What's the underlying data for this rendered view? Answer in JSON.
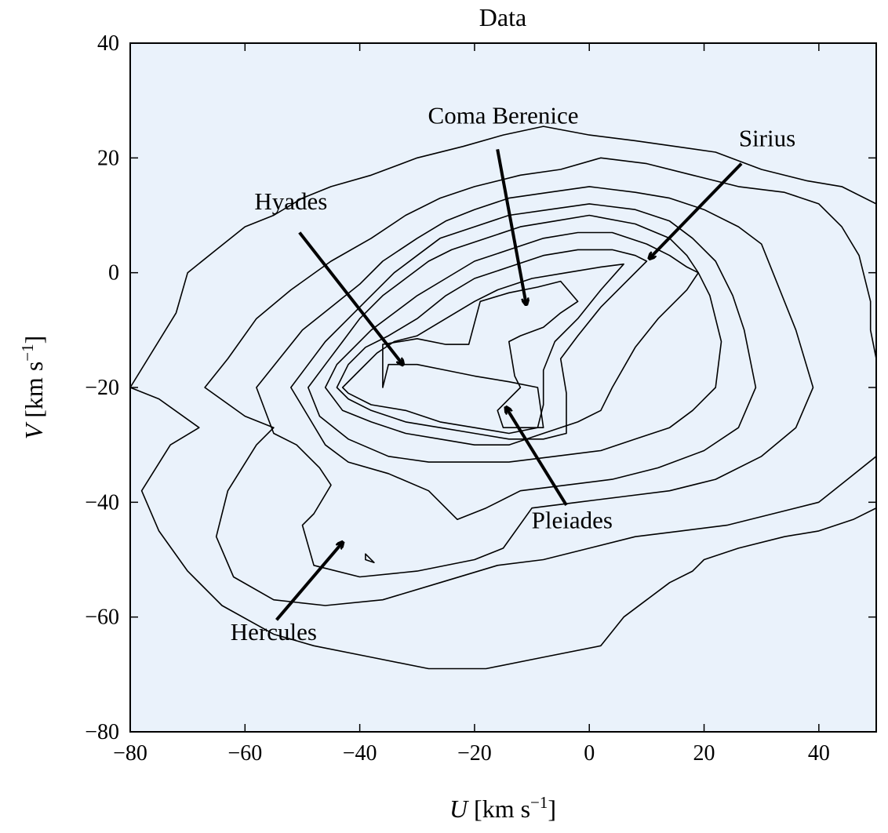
{
  "chart_data": {
    "type": "contour",
    "title": "Data",
    "xlabel": {
      "var": "U",
      "unit": " [km s",
      "sup": "−1",
      "close": "]"
    },
    "ylabel": {
      "var": "V",
      "unit": " [km s",
      "sup": "−1",
      "close": "]"
    },
    "xlim": [
      -80,
      50
    ],
    "ylim": [
      -80,
      40
    ],
    "xticks": [
      -80,
      -60,
      -40,
      -20,
      0,
      20,
      40
    ],
    "yticks": [
      -80,
      -60,
      -40,
      -20,
      0,
      20,
      40
    ],
    "xtick_labels": [
      "−80",
      "−60",
      "−40",
      "−20",
      "0",
      "20",
      "40"
    ],
    "ytick_labels": [
      "−80",
      "−60",
      "−40",
      "−20",
      "0",
      "20",
      "40"
    ],
    "background_color": "#eaf2fb",
    "level_colors": [
      "#dbe7f5",
      "#c7dbee",
      "#afcde6",
      "#95bfdf",
      "#76abd5",
      "#5590c6",
      "#3b72b5",
      "#2a5ca5",
      "#1d4184"
    ],
    "levels": [
      [
        [
          -80,
          -20
        ],
        [
          -72,
          -7
        ],
        [
          -70,
          0
        ],
        [
          -65,
          4
        ],
        [
          -60,
          8
        ],
        [
          -55,
          10
        ],
        [
          -50,
          13
        ],
        [
          -45,
          15
        ],
        [
          -38,
          17
        ],
        [
          -30,
          20
        ],
        [
          -22,
          22
        ],
        [
          -15,
          24
        ],
        [
          -8,
          25.5
        ],
        [
          0,
          24
        ],
        [
          8,
          23
        ],
        [
          15,
          22
        ],
        [
          22,
          21
        ],
        [
          30,
          18
        ],
        [
          38,
          16
        ],
        [
          44,
          15
        ],
        [
          50,
          12
        ],
        [
          50,
          -41
        ],
        [
          46,
          -43
        ],
        [
          40,
          -45
        ],
        [
          34,
          -46
        ],
        [
          26,
          -48
        ],
        [
          20,
          -50
        ],
        [
          18,
          -52
        ],
        [
          14,
          -54
        ],
        [
          10,
          -57
        ],
        [
          6,
          -60
        ],
        [
          2,
          -65
        ],
        [
          -8,
          -67
        ],
        [
          -18,
          -69
        ],
        [
          -28,
          -69
        ],
        [
          -38,
          -67
        ],
        [
          -48,
          -65
        ],
        [
          -55,
          -63
        ],
        [
          -64,
          -58
        ],
        [
          -70,
          -52
        ],
        [
          -75,
          -45
        ],
        [
          -78,
          -38
        ],
        [
          -73,
          -30
        ],
        [
          -68,
          -27
        ],
        [
          -75,
          -22
        ]
      ],
      [
        [
          -67,
          -20
        ],
        [
          -63,
          -15
        ],
        [
          -58,
          -8
        ],
        [
          -52,
          -3
        ],
        [
          -45,
          2
        ],
        [
          -38,
          6
        ],
        [
          -32,
          10
        ],
        [
          -26,
          13
        ],
        [
          -20,
          15
        ],
        [
          -12,
          17
        ],
        [
          -5,
          18
        ],
        [
          2,
          20
        ],
        [
          10,
          19
        ],
        [
          18,
          17
        ],
        [
          26,
          15
        ],
        [
          34,
          14
        ],
        [
          40,
          12
        ],
        [
          44,
          8
        ],
        [
          47,
          3
        ],
        [
          49,
          -5
        ],
        [
          49,
          -10
        ],
        [
          50,
          -15
        ],
        [
          50,
          -32
        ],
        [
          45,
          -36
        ],
        [
          40,
          -40
        ],
        [
          32,
          -42
        ],
        [
          24,
          -44
        ],
        [
          16,
          -45
        ],
        [
          8,
          -46
        ],
        [
          0,
          -48
        ],
        [
          -8,
          -50
        ],
        [
          -16,
          -51
        ],
        [
          -26,
          -54
        ],
        [
          -36,
          -57
        ],
        [
          -46,
          -58
        ],
        [
          -55,
          -57
        ],
        [
          -62,
          -53
        ],
        [
          -65,
          -46
        ],
        [
          -63,
          -38
        ],
        [
          -58,
          -30
        ],
        [
          -55,
          -27
        ],
        [
          -60,
          -25
        ]
      ],
      [
        [
          -58,
          -20
        ],
        [
          -54,
          -15
        ],
        [
          -50,
          -10
        ],
        [
          -45,
          -6
        ],
        [
          -40,
          -2
        ],
        [
          -36,
          2
        ],
        [
          -30,
          6
        ],
        [
          -25,
          9
        ],
        [
          -20,
          11
        ],
        [
          -14,
          13
        ],
        [
          -7,
          14
        ],
        [
          0,
          15
        ],
        [
          8,
          14
        ],
        [
          14,
          13
        ],
        [
          20,
          11
        ],
        [
          26,
          8
        ],
        [
          30,
          5
        ],
        [
          34,
          -5
        ],
        [
          36,
          -10
        ],
        [
          39,
          -20
        ],
        [
          36,
          -27
        ],
        [
          30,
          -32
        ],
        [
          22,
          -36
        ],
        [
          14,
          -38
        ],
        [
          6,
          -39
        ],
        [
          -2,
          -40
        ],
        [
          -10,
          -41
        ],
        [
          -15,
          -48
        ],
        [
          -20,
          -50
        ],
        [
          -30,
          -52
        ],
        [
          -40,
          -53
        ],
        [
          -48,
          -51
        ],
        [
          -50,
          -44
        ],
        [
          -48,
          -42
        ],
        [
          -45,
          -37
        ],
        [
          -47,
          -34
        ],
        [
          -51,
          -30
        ],
        [
          -55,
          -28
        ]
      ],
      [
        [
          -52,
          -20
        ],
        [
          -49,
          -16
        ],
        [
          -46,
          -12
        ],
        [
          -42,
          -8
        ],
        [
          -38,
          -4
        ],
        [
          -34,
          0
        ],
        [
          -30,
          3
        ],
        [
          -26,
          6
        ],
        [
          -20,
          8
        ],
        [
          -14,
          10
        ],
        [
          -7,
          11
        ],
        [
          0,
          12
        ],
        [
          8,
          11
        ],
        [
          14,
          9
        ],
        [
          18,
          6
        ],
        [
          22,
          2
        ],
        [
          25,
          -4
        ],
        [
          27,
          -10
        ],
        [
          29,
          -20
        ],
        [
          26,
          -27
        ],
        [
          20,
          -31
        ],
        [
          12,
          -34
        ],
        [
          4,
          -36
        ],
        [
          -4,
          -37
        ],
        [
          -12,
          -38
        ],
        [
          -18,
          -41
        ],
        [
          -23,
          -43
        ],
        [
          -28,
          -38
        ],
        [
          -35,
          -35
        ],
        [
          -42,
          -33
        ],
        [
          -46,
          -30
        ],
        [
          -49,
          -25
        ]
      ],
      [
        [
          -49,
          -20
        ],
        [
          -46,
          -16
        ],
        [
          -43,
          -12
        ],
        [
          -40,
          -8
        ],
        [
          -36,
          -4
        ],
        [
          -32,
          -1
        ],
        [
          -28,
          2
        ],
        [
          -24,
          4
        ],
        [
          -18,
          6
        ],
        [
          -12,
          8
        ],
        [
          -6,
          9
        ],
        [
          0,
          10
        ],
        [
          8,
          8.5
        ],
        [
          14,
          6
        ],
        [
          17,
          3
        ],
        [
          19,
          0
        ],
        [
          21,
          -4
        ],
        [
          22,
          -8
        ],
        [
          23,
          -12
        ],
        [
          22,
          -20
        ],
        [
          18,
          -24
        ],
        [
          14,
          -27
        ],
        [
          8,
          -29
        ],
        [
          2,
          -31
        ],
        [
          -6,
          -32
        ],
        [
          -14,
          -33
        ],
        [
          -22,
          -33
        ],
        [
          -28,
          -33
        ],
        [
          -35,
          -32
        ],
        [
          -42,
          -29
        ],
        [
          -47,
          -25
        ]
      ],
      [
        [
          -46,
          -20
        ],
        [
          -44,
          -16
        ],
        [
          -41,
          -13
        ],
        [
          -38,
          -10
        ],
        [
          -34,
          -7
        ],
        [
          -30,
          -4
        ],
        [
          -25,
          -1
        ],
        [
          -20,
          2
        ],
        [
          -14,
          4
        ],
        [
          -8,
          6
        ],
        [
          -2,
          7
        ],
        [
          4,
          7
        ],
        [
          10,
          5
        ],
        [
          14,
          3
        ],
        [
          17,
          1
        ],
        [
          19,
          0
        ],
        [
          17,
          -3
        ],
        [
          12,
          -8
        ],
        [
          8,
          -13
        ],
        [
          4,
          -20
        ],
        [
          2,
          -24
        ],
        [
          -2,
          -26
        ],
        [
          -8,
          -28
        ],
        [
          -14,
          -30
        ],
        [
          -20,
          -30
        ],
        [
          -26,
          -29
        ],
        [
          -32,
          -28
        ],
        [
          -38,
          -26
        ],
        [
          -43,
          -24
        ]
      ],
      [
        [
          -44,
          -20
        ],
        [
          -42,
          -16
        ],
        [
          -39,
          -13
        ],
        [
          -35,
          -11
        ],
        [
          -30,
          -8
        ],
        [
          -25,
          -4
        ],
        [
          -20,
          -1
        ],
        [
          -14,
          1
        ],
        [
          -8,
          3
        ],
        [
          -2,
          4
        ],
        [
          4,
          4
        ],
        [
          8,
          3
        ],
        [
          10,
          2
        ],
        [
          6,
          -2
        ],
        [
          2,
          -6
        ],
        [
          -2,
          -11
        ],
        [
          -5,
          -15
        ],
        [
          -4,
          -21
        ],
        [
          -4,
          -28
        ],
        [
          -8,
          -29
        ],
        [
          -14,
          -29
        ],
        [
          -20,
          -28
        ],
        [
          -26,
          -27
        ],
        [
          -32,
          -26
        ],
        [
          -38,
          -24
        ],
        [
          -42,
          -22
        ]
      ],
      [
        [
          -43,
          -20
        ],
        [
          -40,
          -17
        ],
        [
          -37,
          -14
        ],
        [
          -34,
          -12
        ],
        [
          -30,
          -11
        ],
        [
          -25,
          -8
        ],
        [
          -20,
          -5
        ],
        [
          -16,
          -3
        ],
        [
          -10,
          -1
        ],
        [
          -4,
          0
        ],
        [
          2,
          1
        ],
        [
          6,
          1.5
        ],
        [
          2,
          -3
        ],
        [
          -2,
          -8
        ],
        [
          -6,
          -12
        ],
        [
          -8,
          -17
        ],
        [
          -8,
          -23
        ],
        [
          -9,
          -27
        ],
        [
          -14,
          -28
        ],
        [
          -20,
          -27
        ],
        [
          -26,
          -26
        ],
        [
          -32,
          -24
        ],
        [
          -38,
          -23
        ],
        [
          -42,
          -21
        ]
      ],
      [
        [
          -36,
          -12.5
        ],
        [
          -30,
          -11.5
        ],
        [
          -25,
          -12.5
        ],
        [
          -21,
          -12.5
        ],
        [
          -19,
          -5
        ],
        [
          -14,
          -3.5
        ],
        [
          -9,
          -2.5
        ],
        [
          -5,
          -1.5
        ],
        [
          -2,
          -5
        ],
        [
          -5,
          -7
        ],
        [
          -8,
          -9.5
        ],
        [
          -12,
          -11
        ],
        [
          -14,
          -12
        ],
        [
          -13,
          -18
        ],
        [
          -12,
          -20
        ],
        [
          -14,
          -22
        ],
        [
          -16,
          -24
        ],
        [
          -15,
          -27
        ],
        [
          -12,
          -27
        ],
        [
          -11,
          -27
        ],
        [
          -8,
          -27
        ],
        [
          -9,
          -20
        ],
        [
          -14,
          -19
        ],
        [
          -20,
          -18
        ],
        [
          -25,
          -17
        ],
        [
          -30,
          -16
        ],
        [
          -35,
          -16
        ],
        [
          -36,
          -20
        ],
        [
          -36,
          -16
        ]
      ],
      [
        [
          -39,
          -49
        ],
        [
          -39,
          -50
        ],
        [
          -37.5,
          -50.5
        ],
        [
          -39,
          -49
        ]
      ]
    ],
    "arrows": [
      {
        "label": "Hyades",
        "text_at": [
          -52,
          11
        ],
        "from": [
          -50.5,
          7
        ],
        "to": [
          -32.5,
          -16
        ]
      },
      {
        "label": "Coma Berenice",
        "text_at": [
          -15,
          26
        ],
        "from": [
          -16,
          21.5
        ],
        "to": [
          -11,
          -5.5
        ]
      },
      {
        "label": "Sirius",
        "text_at": [
          31,
          22
        ],
        "from": [
          26.5,
          19
        ],
        "to": [
          10.5,
          2.5
        ]
      },
      {
        "label": "Pleiades",
        "text_at": [
          -3,
          -44.5
        ],
        "from": [
          -4,
          -40.5
        ],
        "to": [
          -14.5,
          -23.5
        ]
      },
      {
        "label": "Hercules",
        "text_at": [
          -55,
          -64
        ],
        "from": [
          -54.5,
          -60.5
        ],
        "to": [
          -43,
          -47
        ]
      }
    ]
  }
}
